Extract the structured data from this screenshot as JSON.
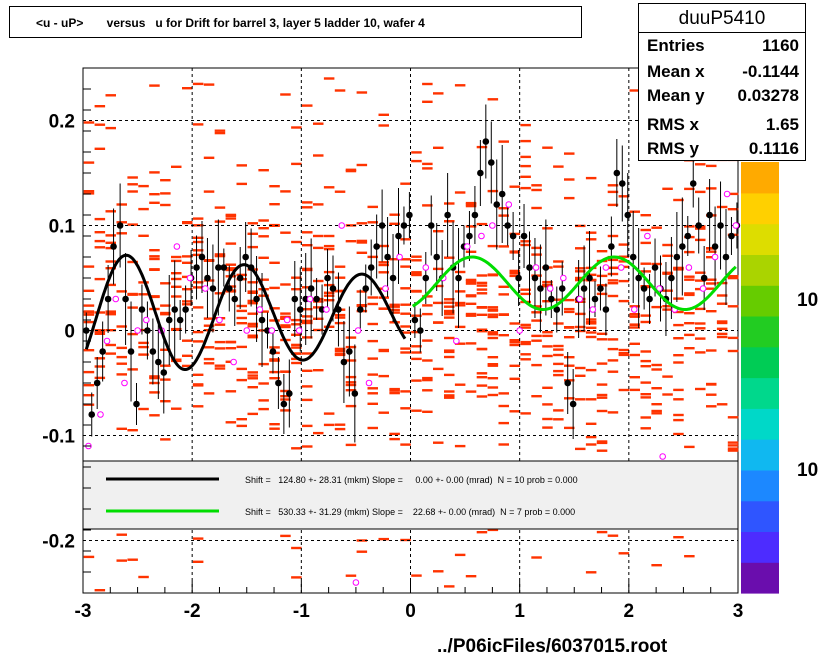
{
  "title": "<u - uP>       versus   u for Drift for barrel 3, layer 5 ladder 10, wafer 4",
  "footer": "../P06icFiles/6037015.root",
  "stats": {
    "name": "duuP5410",
    "rows": [
      {
        "label": "Entries",
        "value": "1160"
      },
      {
        "label": "Mean x",
        "value": "-0.1144"
      },
      {
        "label": "Mean y",
        "value": "0.03278"
      },
      {
        "label": "RMS x",
        "value": "1.65"
      },
      {
        "label": "RMS y",
        "value": "0.1116"
      }
    ]
  },
  "colors": {
    "hist": "#ff3300",
    "marker": "#ff00ff",
    "fit1": "#000000",
    "fit2": "#00dd00",
    "legend_bg": "#f0f0f0"
  },
  "chart_data": {
    "type": "scatter",
    "xlim": [
      -3,
      3
    ],
    "ylim": [
      -0.25,
      0.25
    ],
    "x_ticks": [
      "-3",
      "-2",
      "-1",
      "0",
      "1",
      "2",
      "3"
    ],
    "y_ticks": [
      "-0.2",
      "-0.1",
      "0",
      "0.1",
      "0.2"
    ],
    "palette_labels": [
      "10",
      "10"
    ],
    "grid": true,
    "legend": [
      {
        "text": "Shift =   124.80 +- 28.31 (mkm) Slope =     0.00 +- 0.00 (mrad)  N = 10 prob = 0.000",
        "color": "#000000"
      },
      {
        "text": "Shift =   530.33 +- 31.29 (mkm) Slope =    22.68 +- 0.00 (mrad)  N = 7 prob = 0.000",
        "color": "#00dd00"
      }
    ],
    "profile_left": [
      [
        -2.97,
        0.0
      ],
      [
        -2.92,
        -0.08
      ],
      [
        -2.87,
        -0.05
      ],
      [
        -2.82,
        -0.02
      ],
      [
        -2.77,
        0.03
      ],
      [
        -2.72,
        0.08
      ],
      [
        -2.66,
        0.1
      ],
      [
        -2.61,
        0.03
      ],
      [
        -2.56,
        -0.02
      ],
      [
        -2.51,
        -0.07
      ],
      [
        -2.46,
        0.02
      ],
      [
        -2.41,
        0.0
      ],
      [
        -2.36,
        -0.02
      ],
      [
        -2.31,
        -0.03
      ],
      [
        -2.26,
        -0.04
      ],
      [
        -2.21,
        0.01
      ],
      [
        -2.16,
        0.02
      ],
      [
        -2.11,
        0.01
      ],
      [
        -2.06,
        0.02
      ],
      [
        -2.01,
        0.05
      ],
      [
        -1.96,
        0.06
      ],
      [
        -1.91,
        0.07
      ],
      [
        -1.86,
        0.05
      ],
      [
        -1.81,
        0.04
      ],
      [
        -1.76,
        0.06
      ],
      [
        -1.71,
        0.06
      ],
      [
        -1.66,
        0.04
      ],
      [
        -1.61,
        0.03
      ],
      [
        -1.56,
        0.05
      ],
      [
        -1.51,
        0.07
      ],
      [
        -1.46,
        0.06
      ],
      [
        -1.41,
        0.03
      ],
      [
        -1.36,
        0.01
      ],
      [
        -1.31,
        0.0
      ],
      [
        -1.26,
        -0.02
      ],
      [
        -1.21,
        -0.05
      ],
      [
        -1.16,
        -0.07
      ],
      [
        -1.11,
        -0.06
      ],
      [
        -1.06,
        0.03
      ],
      [
        -1.01,
        0.02
      ],
      [
        -0.96,
        0.03
      ],
      [
        -0.91,
        0.04
      ],
      [
        -0.86,
        0.03
      ],
      [
        -0.81,
        0.02
      ],
      [
        -0.76,
        0.05
      ],
      [
        -0.71,
        0.04
      ],
      [
        -0.66,
        0.02
      ],
      [
        -0.61,
        -0.03
      ],
      [
        -0.56,
        -0.02
      ],
      [
        -0.51,
        -0.06
      ],
      [
        -0.46,
        0.02
      ],
      [
        -0.41,
        0.04
      ],
      [
        -0.36,
        0.06
      ],
      [
        -0.31,
        0.08
      ],
      [
        -0.26,
        0.1
      ],
      [
        -0.21,
        0.07
      ],
      [
        -0.16,
        0.05
      ],
      [
        -0.11,
        0.09
      ],
      [
        -0.06,
        0.1
      ],
      [
        -0.01,
        0.11
      ]
    ],
    "profile_right": [
      [
        0.04,
        0.01
      ],
      [
        0.09,
        0.0
      ],
      [
        0.14,
        0.05
      ],
      [
        0.19,
        0.1
      ],
      [
        0.24,
        0.07
      ],
      [
        0.29,
        0.05
      ],
      [
        0.34,
        0.11
      ],
      [
        0.39,
        0.06
      ],
      [
        0.44,
        0.05
      ],
      [
        0.49,
        0.08
      ],
      [
        0.54,
        0.09
      ],
      [
        0.59,
        0.11
      ],
      [
        0.64,
        0.15
      ],
      [
        0.69,
        0.18
      ],
      [
        0.74,
        0.16
      ],
      [
        0.79,
        0.12
      ],
      [
        0.84,
        0.13
      ],
      [
        0.89,
        0.1
      ],
      [
        0.94,
        0.09
      ],
      [
        0.99,
        0.05
      ],
      [
        1.04,
        0.09
      ],
      [
        1.09,
        0.06
      ],
      [
        1.14,
        0.05
      ],
      [
        1.19,
        0.04
      ],
      [
        1.24,
        0.06
      ],
      [
        1.29,
        0.03
      ],
      [
        1.34,
        0.02
      ],
      [
        1.39,
        0.04
      ],
      [
        1.44,
        -0.05
      ],
      [
        1.49,
        -0.07
      ],
      [
        1.54,
        0.03
      ],
      [
        1.59,
        0.04
      ],
      [
        1.64,
        0.05
      ],
      [
        1.69,
        0.03
      ],
      [
        1.74,
        0.04
      ],
      [
        1.79,
        0.02
      ],
      [
        1.84,
        0.08
      ],
      [
        1.89,
        0.15
      ],
      [
        1.94,
        0.14
      ],
      [
        1.99,
        0.11
      ],
      [
        2.04,
        0.07
      ],
      [
        2.09,
        0.05
      ],
      [
        2.14,
        0.04
      ],
      [
        2.19,
        0.03
      ],
      [
        2.24,
        0.06
      ],
      [
        2.29,
        0.04
      ],
      [
        2.34,
        0.03
      ],
      [
        2.39,
        0.05
      ],
      [
        2.44,
        0.07
      ],
      [
        2.49,
        0.08
      ],
      [
        2.54,
        0.09
      ],
      [
        2.59,
        0.14
      ],
      [
        2.64,
        0.1
      ],
      [
        2.69,
        0.05
      ],
      [
        2.74,
        0.11
      ],
      [
        2.79,
        0.08
      ],
      [
        2.84,
        0.1
      ],
      [
        2.89,
        0.07
      ],
      [
        2.94,
        0.09
      ],
      [
        2.99,
        0.1
      ]
    ],
    "magenta_points": [
      [
        -2.95,
        -0.11
      ],
      [
        -2.84,
        -0.08
      ],
      [
        -2.78,
        -0.01
      ],
      [
        -2.7,
        0.03
      ],
      [
        -2.62,
        -0.05
      ],
      [
        -2.5,
        0.0
      ],
      [
        -2.42,
        0.01
      ],
      [
        -2.28,
        0.0
      ],
      [
        -2.14,
        0.08
      ],
      [
        -2.02,
        0.05
      ],
      [
        -1.88,
        0.04
      ],
      [
        -1.75,
        0.01
      ],
      [
        -1.62,
        -0.03
      ],
      [
        -1.5,
        0.0
      ],
      [
        -1.38,
        0.02
      ],
      [
        -1.27,
        0.0
      ],
      [
        -1.13,
        0.01
      ],
      [
        -1.02,
        0.0
      ],
      [
        -0.92,
        0.03
      ],
      [
        -0.77,
        0.02
      ],
      [
        -0.63,
        0.1
      ],
      [
        -0.48,
        0.0
      ],
      [
        -0.38,
        -0.05
      ],
      [
        -0.23,
        0.04
      ],
      [
        -0.1,
        0.07
      ],
      [
        -0.5,
        -0.24
      ],
      [
        0.14,
        0.06
      ],
      [
        0.3,
        0.05
      ],
      [
        0.42,
        -0.01
      ],
      [
        0.52,
        0.08
      ],
      [
        0.65,
        0.09
      ],
      [
        0.75,
        0.1
      ],
      [
        0.9,
        0.12
      ],
      [
        1.0,
        0.0
      ],
      [
        1.15,
        0.06
      ],
      [
        1.28,
        0.04
      ],
      [
        1.4,
        0.05
      ],
      [
        1.55,
        0.03
      ],
      [
        1.67,
        0.02
      ],
      [
        1.79,
        0.06
      ],
      [
        1.93,
        0.06
      ],
      [
        2.05,
        0.02
      ],
      [
        2.17,
        0.09
      ],
      [
        2.28,
        0.04
      ],
      [
        2.31,
        -0.12
      ],
      [
        2.42,
        0.02
      ],
      [
        2.55,
        0.06
      ],
      [
        2.68,
        0.04
      ],
      [
        2.79,
        0.07
      ],
      [
        2.9,
        0.13
      ],
      [
        2.98,
        0.1
      ]
    ],
    "fit1": {
      "x_range": [
        -2.97,
        -0.05
      ],
      "shift_mkm": 124.8,
      "slope_mrad": 0.0
    },
    "fit2": {
      "x_range": [
        0.02,
        2.98
      ],
      "shift_mkm": 530.33,
      "slope_mrad": 22.68
    }
  }
}
